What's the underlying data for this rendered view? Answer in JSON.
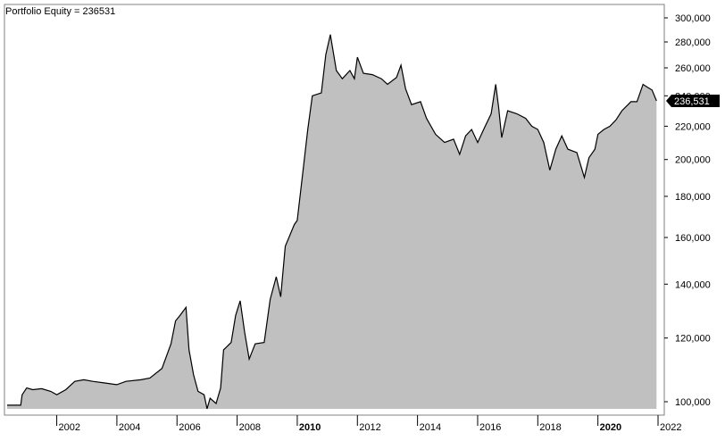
{
  "title": "Portfolio Equity = 236531",
  "chart_data": {
    "type": "area",
    "title": "Portfolio Equity = 236531",
    "y_scale": "log",
    "ylim": [
      97000,
      305000
    ],
    "xlim": [
      2000.35,
      2022.0
    ],
    "grid": false,
    "fill_color": "#c0c0c0",
    "line_color": "#000000",
    "y_axis_side": "right",
    "last_value_label": "236,531",
    "y_ticks": [
      {
        "value": 100000,
        "label": "100,000"
      },
      {
        "value": 120000,
        "label": "120,000"
      },
      {
        "value": 140000,
        "label": "140,000"
      },
      {
        "value": 160000,
        "label": "160,000"
      },
      {
        "value": 180000,
        "label": "180,000"
      },
      {
        "value": 200000,
        "label": "200,000"
      },
      {
        "value": 220000,
        "label": "220,000"
      },
      {
        "value": 240000,
        "label": "240,000"
      },
      {
        "value": 260000,
        "label": "260,000"
      },
      {
        "value": 280000,
        "label": "280,000"
      },
      {
        "value": 300000,
        "label": "300,000"
      }
    ],
    "x_ticks": [
      {
        "value": 2002,
        "label": "2002",
        "bold": false
      },
      {
        "value": 2004,
        "label": "2004",
        "bold": false
      },
      {
        "value": 2006,
        "label": "2006",
        "bold": false
      },
      {
        "value": 2008,
        "label": "2008",
        "bold": false
      },
      {
        "value": 2010,
        "label": "2010",
        "bold": true
      },
      {
        "value": 2012,
        "label": "2012",
        "bold": false
      },
      {
        "value": 2014,
        "label": "2014",
        "bold": false
      },
      {
        "value": 2016,
        "label": "2016",
        "bold": false
      },
      {
        "value": 2018,
        "label": "2018",
        "bold": false
      },
      {
        "value": 2020,
        "label": "2020",
        "bold": true
      },
      {
        "value": 2022,
        "label": "2022",
        "bold": false
      }
    ],
    "series": [
      {
        "values": [
          [
            2000.35,
            99000
          ],
          [
            2000.8,
            99000
          ],
          [
            2000.85,
            102000
          ],
          [
            2001.0,
            104000
          ],
          [
            2001.2,
            103500
          ],
          [
            2001.5,
            103800
          ],
          [
            2001.8,
            103000
          ],
          [
            2002.0,
            102000
          ],
          [
            2002.3,
            103500
          ],
          [
            2002.6,
            106000
          ],
          [
            2002.9,
            106500
          ],
          [
            2003.2,
            106000
          ],
          [
            2003.6,
            105500
          ],
          [
            2004.0,
            105000
          ],
          [
            2004.3,
            106000
          ],
          [
            2004.8,
            106500
          ],
          [
            2005.1,
            107000
          ],
          [
            2005.5,
            110000
          ],
          [
            2005.8,
            118000
          ],
          [
            2005.95,
            126000
          ],
          [
            2006.1,
            128000
          ],
          [
            2006.3,
            131000
          ],
          [
            2006.4,
            116000
          ],
          [
            2006.55,
            108000
          ],
          [
            2006.7,
            103000
          ],
          [
            2006.9,
            102000
          ],
          [
            2007.0,
            98000
          ],
          [
            2007.1,
            101000
          ],
          [
            2007.3,
            99500
          ],
          [
            2007.45,
            104000
          ],
          [
            2007.55,
            116000
          ],
          [
            2007.8,
            118500
          ],
          [
            2007.95,
            128000
          ],
          [
            2008.1,
            133500
          ],
          [
            2008.25,
            122000
          ],
          [
            2008.4,
            113000
          ],
          [
            2008.6,
            118000
          ],
          [
            2008.9,
            118500
          ],
          [
            2009.1,
            134000
          ],
          [
            2009.3,
            143000
          ],
          [
            2009.45,
            135000
          ],
          [
            2009.6,
            156000
          ],
          [
            2009.9,
            166000
          ],
          [
            2010.0,
            168000
          ],
          [
            2010.2,
            195000
          ],
          [
            2010.35,
            218000
          ],
          [
            2010.5,
            240000
          ],
          [
            2010.8,
            242000
          ],
          [
            2010.95,
            270000
          ],
          [
            2011.1,
            286000
          ],
          [
            2011.3,
            258000
          ],
          [
            2011.5,
            252000
          ],
          [
            2011.75,
            258000
          ],
          [
            2011.9,
            252000
          ],
          [
            2012.0,
            268000
          ],
          [
            2012.2,
            256000
          ],
          [
            2012.5,
            255000
          ],
          [
            2012.8,
            252000
          ],
          [
            2013.0,
            248000
          ],
          [
            2013.3,
            253000
          ],
          [
            2013.45,
            262000
          ],
          [
            2013.6,
            245000
          ],
          [
            2013.8,
            234000
          ],
          [
            2014.1,
            236000
          ],
          [
            2014.3,
            225000
          ],
          [
            2014.6,
            215000
          ],
          [
            2014.9,
            210000
          ],
          [
            2015.2,
            212000
          ],
          [
            2015.4,
            203000
          ],
          [
            2015.6,
            214000
          ],
          [
            2015.8,
            218000
          ],
          [
            2016.0,
            210000
          ],
          [
            2016.2,
            218000
          ],
          [
            2016.45,
            228000
          ],
          [
            2016.6,
            248000
          ],
          [
            2016.7,
            232000
          ],
          [
            2016.8,
            213000
          ],
          [
            2017.0,
            230000
          ],
          [
            2017.3,
            228000
          ],
          [
            2017.6,
            225000
          ],
          [
            2017.8,
            220000
          ],
          [
            2018.0,
            218000
          ],
          [
            2018.2,
            210000
          ],
          [
            2018.4,
            194000
          ],
          [
            2018.6,
            206000
          ],
          [
            2018.8,
            214000
          ],
          [
            2019.0,
            206000
          ],
          [
            2019.3,
            204000
          ],
          [
            2019.55,
            190000
          ],
          [
            2019.7,
            201000
          ],
          [
            2019.9,
            206000
          ],
          [
            2020.0,
            215000
          ],
          [
            2020.2,
            218000
          ],
          [
            2020.4,
            220000
          ],
          [
            2020.6,
            224000
          ],
          [
            2020.8,
            230000
          ],
          [
            2021.1,
            236000
          ],
          [
            2021.3,
            236000
          ],
          [
            2021.5,
            248000
          ],
          [
            2021.65,
            246000
          ],
          [
            2021.8,
            244000
          ],
          [
            2021.95,
            236531
          ]
        ]
      }
    ]
  }
}
